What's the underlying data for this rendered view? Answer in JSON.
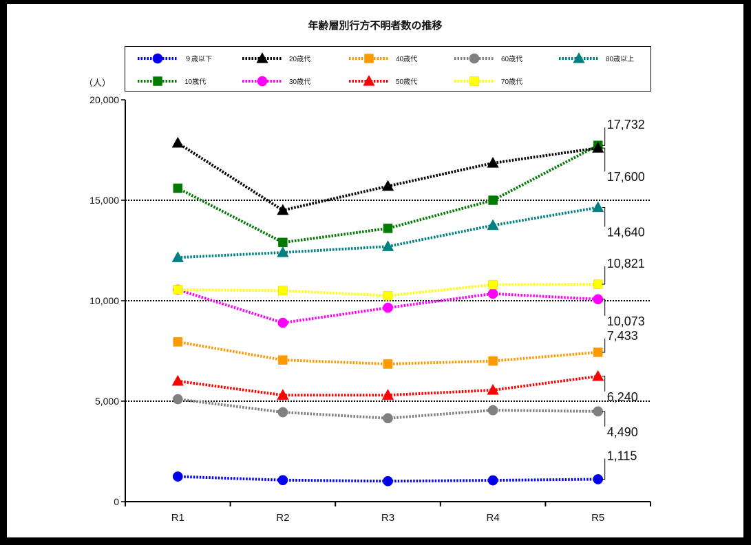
{
  "chart_data": {
    "type": "line",
    "title": "年齢層別行方不明者数の推移",
    "ylabel": "（人）",
    "x": [
      "R1",
      "R2",
      "R3",
      "R4",
      "R5"
    ],
    "ylim": [
      0,
      20000
    ],
    "yticks": [
      0,
      5000,
      10000,
      15000,
      20000
    ],
    "ytick_labels": [
      "0",
      "5,000",
      "10,000",
      "15,000",
      "20,000"
    ],
    "gridlines": [
      5000,
      10000,
      15000
    ],
    "legend_position": "top",
    "series": [
      {
        "name": "９歳以下",
        "color": "#0000ee",
        "marker": "circle",
        "values": [
          1250,
          1070,
          1020,
          1060,
          1115
        ]
      },
      {
        "name": "10歳代",
        "color": "#007a00",
        "marker": "square",
        "values": [
          15600,
          12900,
          13600,
          15000,
          17732
        ]
      },
      {
        "name": "20歳代",
        "color": "#000000",
        "marker": "triangle",
        "values": [
          17850,
          14500,
          15700,
          16850,
          17600
        ]
      },
      {
        "name": "30歳代",
        "color": "#ff00ff",
        "marker": "circle",
        "values": [
          10550,
          8900,
          9650,
          10350,
          10073
        ]
      },
      {
        "name": "40歳代",
        "color": "#ff9900",
        "marker": "square",
        "values": [
          7950,
          7050,
          6850,
          7000,
          7433
        ]
      },
      {
        "name": "50歳代",
        "color": "#ff0000",
        "marker": "triangle",
        "values": [
          6000,
          5300,
          5300,
          5550,
          6240
        ]
      },
      {
        "name": "60歳代",
        "color": "#808080",
        "marker": "circle",
        "values": [
          5100,
          4450,
          4150,
          4550,
          4490
        ]
      },
      {
        "name": "70歳代",
        "color": "#ffff00",
        "marker": "square",
        "values": [
          10550,
          10500,
          10250,
          10800,
          10821
        ]
      },
      {
        "name": "80歳以上",
        "color": "#008080",
        "marker": "triangle",
        "values": [
          12150,
          12400,
          12700,
          13750,
          14640
        ]
      }
    ],
    "annotations": [
      {
        "text": "17,732",
        "value": 17732
      },
      {
        "text": "17,600",
        "value": 17600
      },
      {
        "text": "14,640",
        "value": 14640
      },
      {
        "text": "10,821",
        "value": 10821
      },
      {
        "text": "10,073",
        "value": 10073
      },
      {
        "text": "7,433",
        "value": 7433
      },
      {
        "text": "6,240",
        "value": 6240
      },
      {
        "text": "4,490",
        "value": 4490
      },
      {
        "text": "1,115",
        "value": 1115
      }
    ]
  }
}
